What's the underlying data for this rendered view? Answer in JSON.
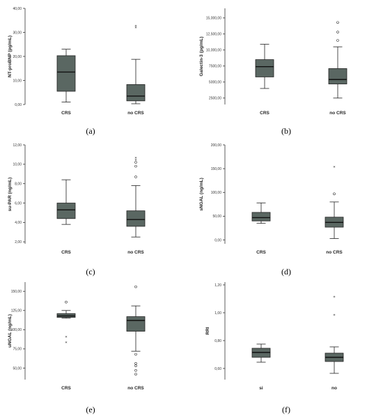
{
  "chart_data": [
    {
      "type": "box",
      "panel_label": "(a)",
      "ylabel": "NT-proBNP (pg/mL)",
      "ylim": [
        0,
        40
      ],
      "yticks": [
        0,
        10,
        20,
        30,
        40
      ],
      "yticklabels": [
        "0,00",
        "10,00",
        "20,00",
        "30,00",
        "40,00"
      ],
      "categories": [
        "CRS",
        "no CRS"
      ],
      "boxes": [
        {
          "whisker_low": 1.0,
          "q1": 5.5,
          "median": 13.5,
          "q3": 20.3,
          "whisker_high": 23.0,
          "outliers": [],
          "extremes": []
        },
        {
          "whisker_low": 0.3,
          "q1": 1.5,
          "median": 3.5,
          "q3": 8.3,
          "whisker_high": 18.8,
          "outliers": [],
          "extremes": [
            31.8,
            32.5
          ]
        }
      ]
    },
    {
      "type": "box",
      "panel_label": "(b)",
      "ylabel": "Galectin-3 (pg/mL)",
      "ylim": [
        1500,
        16500
      ],
      "yticks": [
        2500,
        5000,
        7500,
        10000,
        12500,
        15000
      ],
      "yticklabels": [
        "2500,00",
        "5000,00",
        "7500,00",
        "10,000,00",
        "12,500,00",
        "15,000,00"
      ],
      "categories": [
        "CRS",
        "no CRS"
      ],
      "boxes": [
        {
          "whisker_low": 4000,
          "q1": 5800,
          "median": 7400,
          "q3": 8500,
          "whisker_high": 10900,
          "outliers": [],
          "extremes": []
        },
        {
          "whisker_low": 2500,
          "q1": 4700,
          "median": 5400,
          "q3": 7100,
          "whisker_high": 10500,
          "outliers": [
            11500,
            12800,
            14300
          ],
          "extremes": []
        }
      ]
    },
    {
      "type": "box",
      "panel_label": "(c)",
      "ylabel": "su-PAR (ng/mL)",
      "ylim": [
        1.8,
        12
      ],
      "yticks": [
        2,
        4,
        6,
        8,
        10,
        12
      ],
      "yticklabels": [
        "2,00",
        "4,00",
        "6,00",
        "8,00",
        "10,00",
        "12,00"
      ],
      "categories": [
        "CRS",
        "no CRS"
      ],
      "boxes": [
        {
          "whisker_low": 3.8,
          "q1": 4.4,
          "median": 5.3,
          "q3": 6.0,
          "whisker_high": 8.4,
          "outliers": [],
          "extremes": []
        },
        {
          "whisker_low": 2.5,
          "q1": 3.6,
          "median": 4.3,
          "q3": 5.2,
          "whisker_high": 7.8,
          "outliers": [
            8.7,
            9.8,
            10.2
          ],
          "extremes": [
            10.4,
            10.6
          ]
        }
      ]
    },
    {
      "type": "box",
      "panel_label": "(d)",
      "ylabel": "sNGAL (ng/mL)",
      "ylim": [
        -8,
        200
      ],
      "yticks": [
        0,
        50,
        100,
        150,
        200
      ],
      "yticklabels": [
        "0,00",
        "50,00",
        "100,00",
        "150,00",
        "200,00"
      ],
      "categories": [
        "CRS",
        "no CRS"
      ],
      "boxes": [
        {
          "whisker_low": 35,
          "q1": 40,
          "median": 47,
          "q3": 58,
          "whisker_high": 78,
          "outliers": [],
          "extremes": []
        },
        {
          "whisker_low": 3,
          "q1": 27,
          "median": 37,
          "q3": 48,
          "whisker_high": 80,
          "outliers": [
            97
          ],
          "extremes": [
            153
          ]
        }
      ]
    },
    {
      "type": "box",
      "panel_label": "(e)",
      "ylabel": "uNGAL (ng/mL)",
      "ylim": [
        35,
        162
      ],
      "yticks": [
        50,
        75,
        100,
        125,
        150
      ],
      "yticklabels": [
        "50,00",
        "75,00",
        "100,00",
        "125,00",
        "150,00"
      ],
      "categories": [
        "CRS",
        "no CRS"
      ],
      "boxes": [
        {
          "whisker_low": 115,
          "q1": 116,
          "median": 118,
          "q3": 121,
          "whisker_high": 125,
          "outliers": [
            136
          ],
          "extremes": [
            83,
            90
          ]
        },
        {
          "whisker_low": 72,
          "q1": 98,
          "median": 112,
          "q3": 117,
          "whisker_high": 131,
          "outliers": [
            156,
            68,
            56,
            53,
            47,
            42
          ],
          "extremes": []
        }
      ]
    },
    {
      "type": "box",
      "panel_label": "(f)",
      "ylabel": "RRI",
      "ylim": [
        0.52,
        1.22
      ],
      "yticks": [
        0.6,
        0.8,
        1.0,
        1.2
      ],
      "yticklabels": [
        "0,60",
        "0,80",
        "1,00",
        "1,20"
      ],
      "categories": [
        "si",
        "no"
      ],
      "boxes": [
        {
          "whisker_low": 0.645,
          "q1": 0.68,
          "median": 0.715,
          "q3": 0.745,
          "whisker_high": 0.775,
          "outliers": [],
          "extremes": []
        },
        {
          "whisker_low": 0.565,
          "q1": 0.65,
          "median": 0.68,
          "q3": 0.71,
          "whisker_high": 0.755,
          "outliers": [],
          "extremes": [
            0.98,
            1.11
          ]
        }
      ]
    }
  ],
  "colors": {
    "box_fill": "#5a6762",
    "box_stroke": "#222222",
    "axis": "#333333",
    "outlier": "#333333"
  }
}
